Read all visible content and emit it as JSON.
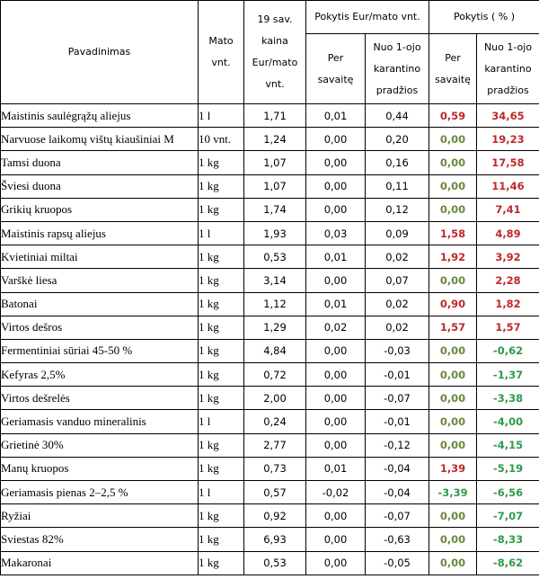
{
  "colors": {
    "positive": "#c0282a",
    "zero": "#6a8a3a",
    "negative": "#2e9a4a"
  },
  "header": {
    "name": "Pavadinimas",
    "unit": "Mato\nvnt.",
    "price": "19 sav.\nkaina\nEur/mato\nvnt.",
    "change_eur": "Pokytis Eur/mato vnt.",
    "change_pct": "Pokytis ( % )",
    "per_week": "Per\nsavaitę",
    "since_quarantine": "Nuo 1-ojo\nkarantino\npradžios"
  },
  "rows": [
    {
      "name": "Maistinis saulėgrąžų aliejus",
      "unit": "1 l",
      "price": "1,71",
      "eur_week": "0,01",
      "eur_start": "0,44",
      "pct_week": "0,59",
      "pct_start": "34,65",
      "cw": "pos",
      "cs": "pos"
    },
    {
      "name": "Narvuose laikomų vištų kiaušiniai M",
      "unit": "10 vnt.",
      "price": "1,24",
      "eur_week": "0,00",
      "eur_start": "0,20",
      "pct_week": "0,00",
      "pct_start": "19,23",
      "cw": "zero",
      "cs": "pos"
    },
    {
      "name": "Tamsi duona",
      "unit": "1 kg",
      "price": "1,07",
      "eur_week": "0,00",
      "eur_start": "0,16",
      "pct_week": "0,00",
      "pct_start": "17,58",
      "cw": "zero",
      "cs": "pos"
    },
    {
      "name": "Šviesi duona",
      "unit": "1 kg",
      "price": "1,07",
      "eur_week": "0,00",
      "eur_start": "0,11",
      "pct_week": "0,00",
      "pct_start": "11,46",
      "cw": "zero",
      "cs": "pos"
    },
    {
      "name": "Grikių kruopos",
      "unit": "1 kg",
      "price": "1,74",
      "eur_week": "0,00",
      "eur_start": "0,12",
      "pct_week": "0,00",
      "pct_start": "7,41",
      "cw": "zero",
      "cs": "pos"
    },
    {
      "name": "Maistinis rapsų aliejus",
      "unit": "1 l",
      "price": "1,93",
      "eur_week": "0,03",
      "eur_start": "0,09",
      "pct_week": "1,58",
      "pct_start": "4,89",
      "cw": "pos",
      "cs": "pos"
    },
    {
      "name": "Kvietiniai miltai",
      "unit": "1 kg",
      "price": "0,53",
      "eur_week": "0,01",
      "eur_start": "0,02",
      "pct_week": "1,92",
      "pct_start": "3,92",
      "cw": "pos",
      "cs": "pos"
    },
    {
      "name": "Varškė liesa",
      "unit": "1 kg",
      "price": "3,14",
      "eur_week": "0,00",
      "eur_start": "0,07",
      "pct_week": "0,00",
      "pct_start": "2,28",
      "cw": "zero",
      "cs": "pos"
    },
    {
      "name": "Batonai",
      "unit": "1 kg",
      "price": "1,12",
      "eur_week": "0,01",
      "eur_start": "0,02",
      "pct_week": "0,90",
      "pct_start": "1,82",
      "cw": "pos",
      "cs": "pos"
    },
    {
      "name": "Virtos dešros",
      "unit": "1 kg",
      "price": "1,29",
      "eur_week": "0,02",
      "eur_start": "0,02",
      "pct_week": "1,57",
      "pct_start": "1,57",
      "cw": "pos",
      "cs": "pos"
    },
    {
      "name": "Fermentiniai sūriai 45-50 %",
      "unit": "1 kg",
      "price": "4,84",
      "eur_week": "0,00",
      "eur_start": "-0,03",
      "pct_week": "0,00",
      "pct_start": "-0,62",
      "cw": "zero",
      "cs": "neg"
    },
    {
      "name": "Kefyras 2,5%",
      "unit": "1 kg",
      "price": "0,72",
      "eur_week": "0,00",
      "eur_start": "-0,01",
      "pct_week": "0,00",
      "pct_start": "-1,37",
      "cw": "zero",
      "cs": "neg"
    },
    {
      "name": "Virtos dešrelės",
      "unit": "1 kg",
      "price": "2,00",
      "eur_week": "0,00",
      "eur_start": "-0,07",
      "pct_week": "0,00",
      "pct_start": "-3,38",
      "cw": "zero",
      "cs": "neg"
    },
    {
      "name": "Geriamasis vanduo mineralinis",
      "unit": "1 l",
      "price": "0,24",
      "eur_week": "0,00",
      "eur_start": "-0,01",
      "pct_week": "0,00",
      "pct_start": "-4,00",
      "cw": "zero",
      "cs": "neg"
    },
    {
      "name": "Grietinė 30%",
      "unit": "1 kg",
      "price": "2,77",
      "eur_week": "0,00",
      "eur_start": "-0,12",
      "pct_week": "0,00",
      "pct_start": "-4,15",
      "cw": "zero",
      "cs": "neg"
    },
    {
      "name": "Manų kruopos",
      "unit": "1 kg",
      "price": "0,73",
      "eur_week": "0,01",
      "eur_start": "-0,04",
      "pct_week": "1,39",
      "pct_start": "-5,19",
      "cw": "pos",
      "cs": "neg"
    },
    {
      "name": "Geriamasis pienas 2–2,5 %",
      "unit": "1 l",
      "price": "0,57",
      "eur_week": "-0,02",
      "eur_start": "-0,04",
      "pct_week": "-3,39",
      "pct_start": "-6,56",
      "cw": "neg",
      "cs": "neg"
    },
    {
      "name": "Ryžiai",
      "unit": "1 kg",
      "price": "0,92",
      "eur_week": "0,00",
      "eur_start": "-0,07",
      "pct_week": "0,00",
      "pct_start": "-7,07",
      "cw": "zero",
      "cs": "neg"
    },
    {
      "name": "Sviestas 82%",
      "unit": "1 kg",
      "price": "6,93",
      "eur_week": "0,00",
      "eur_start": "-0,63",
      "pct_week": "0,00",
      "pct_start": "-8,33",
      "cw": "zero",
      "cs": "neg"
    },
    {
      "name": "Makaronai",
      "unit": "1 kg",
      "price": "0,53",
      "eur_week": "0,00",
      "eur_start": "-0,05",
      "pct_week": "0,00",
      "pct_start": "-8,62",
      "cw": "zero",
      "cs": "neg"
    }
  ]
}
